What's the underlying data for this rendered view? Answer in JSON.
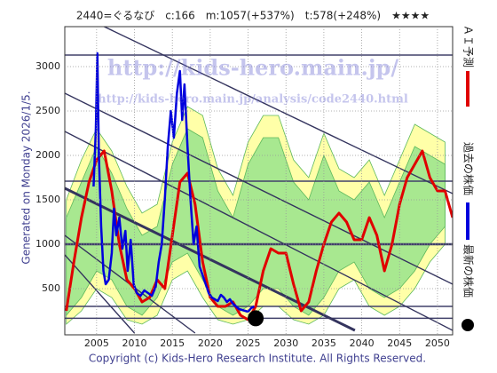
{
  "chart_data": {
    "type": "line",
    "title": "2440=ぐるなび　c:166　m:1057(+537%)　t:578(+248%)　★★★★",
    "generated": "Generated on Monday 2026/1/5.",
    "copyright": "Copyright (c) Kids-Hero Research Institute. All Rights Reserved.",
    "watermarks": [
      "http://kids-hero.main.jp/",
      "http://kids-hero.main.jp/analysis/code2440.html"
    ],
    "xlim": [
      2000.8,
      2052
    ],
    "ylim": [
      -20,
      3450
    ],
    "xticks": [
      2005,
      2010,
      2015,
      2020,
      2025,
      2030,
      2035,
      2040,
      2045,
      2050
    ],
    "yticks": [
      500,
      1000,
      1500,
      2000,
      2500,
      3000
    ],
    "grid": true,
    "legend": "right",
    "bands": [
      {
        "color": "#ffffa8",
        "x": [
          2001,
          2003,
          2005,
          2007,
          2009,
          2011,
          2013,
          2015,
          2017,
          2019,
          2021,
          2023,
          2025,
          2027,
          2029,
          2031,
          2033,
          2035,
          2037,
          2039,
          2041,
          2043,
          2045,
          2047,
          2049,
          2051
        ],
        "upper": [
          1500,
          1950,
          2300,
          2050,
          1650,
          1350,
          1450,
          2150,
          2550,
          2450,
          1850,
          1550,
          2150,
          2450,
          2450,
          1950,
          1750,
          2250,
          1850,
          1750,
          1950,
          1550,
          1950,
          2350,
          2250,
          2150
        ],
        "lower": [
          100,
          250,
          500,
          400,
          150,
          100,
          200,
          600,
          700,
          400,
          150,
          100,
          150,
          300,
          300,
          150,
          100,
          200,
          500,
          600,
          300,
          200,
          300,
          500,
          800,
          1000
        ]
      },
      {
        "color": "#a8e890",
        "x": [
          2001,
          2003,
          2005,
          2007,
          2009,
          2011,
          2013,
          2015,
          2017,
          2019,
          2021,
          2023,
          2025,
          2027,
          2029,
          2031,
          2033,
          2035,
          2037,
          2039,
          2041,
          2043,
          2045,
          2047,
          2049,
          2051
        ],
        "upper": [
          1300,
          1700,
          2100,
          1800,
          1400,
          1100,
          1200,
          1900,
          2300,
          2200,
          1600,
          1300,
          1900,
          2200,
          2200,
          1700,
          1500,
          2000,
          1600,
          1500,
          1700,
          1300,
          1700,
          2100,
          2000,
          1900
        ],
        "lower": [
          200,
          400,
          700,
          600,
          300,
          200,
          400,
          800,
          900,
          600,
          300,
          200,
          300,
          500,
          500,
          300,
          200,
          400,
          700,
          800,
          500,
          400,
          500,
          700,
          1000,
          1200
        ]
      }
    ],
    "levels": [
      3130,
      1710,
      1000,
      300,
      166
    ],
    "trend_lines": [
      {
        "x": [
          2006.0,
          2052
        ],
        "values": [
          3450,
          1570
        ]
      },
      {
        "x": [
          2000.8,
          2052
        ],
        "values": [
          2700,
          550
        ]
      },
      {
        "x": [
          2000.8,
          2052
        ],
        "values": [
          2270,
          30
        ]
      },
      {
        "x": [
          2000.8,
          2039.1
        ],
        "values": [
          1630,
          30
        ]
      },
      {
        "x": [
          2000.8,
          2018.0
        ],
        "values": [
          1100,
          0
        ]
      },
      {
        "x": [
          2000.8,
          2010.0
        ],
        "values": [
          880,
          0
        ]
      }
    ],
    "series": [
      {
        "name": "ＡＩ予測",
        "color": "#e00000",
        "x": [
          2001,
          2002,
          2003,
          2004,
          2005,
          2006,
          2007,
          2008,
          2009,
          2010,
          2011,
          2012,
          2013,
          2014,
          2015,
          2016,
          2017,
          2018,
          2019,
          2020,
          2021,
          2022,
          2023,
          2024,
          2025,
          2026,
          2027,
          2028,
          2029,
          2030,
          2031,
          2032,
          2033,
          2034,
          2035,
          2036,
          2037,
          2038,
          2039,
          2040,
          2041,
          2042,
          2043,
          2044,
          2045,
          2046,
          2047,
          2048,
          2049,
          2050,
          2051,
          2052
        ],
        "values": [
          250,
          800,
          1300,
          1700,
          1950,
          2050,
          1600,
          1000,
          600,
          500,
          350,
          400,
          600,
          500,
          1100,
          1700,
          1800,
          1450,
          800,
          400,
          300,
          300,
          350,
          200,
          150,
          300,
          700,
          950,
          900,
          900,
          550,
          250,
          350,
          700,
          1000,
          1250,
          1350,
          1250,
          1050,
          1050,
          1300,
          1100,
          700,
          1000,
          1450,
          1750,
          1900,
          2050,
          1750,
          1600,
          1600,
          1300
        ]
      },
      {
        "name": "過去の株価",
        "color": "#0000dd",
        "x": [
          2004.6,
          2004.9,
          2005.1,
          2005.3,
          2005.6,
          2005.9,
          2006.2,
          2006.6,
          2007.0,
          2007.3,
          2007.6,
          2008.0,
          2008.4,
          2008.8,
          2009.1,
          2009.5,
          2009.9,
          2010.3,
          2010.8,
          2011.3,
          2011.8,
          2012.3,
          2012.8,
          2013.2,
          2013.6,
          2014.0,
          2014.4,
          2014.8,
          2015.2,
          2015.6,
          2016.0,
          2016.3,
          2016.6,
          2017.0,
          2017.4,
          2017.8,
          2018.2,
          2018.6,
          2019.0,
          2019.4,
          2019.8,
          2020.2,
          2020.6,
          2021.0,
          2021.4,
          2021.8,
          2022.2,
          2022.6,
          2023.0,
          2023.4,
          2023.8,
          2024.2,
          2024.6,
          2025.0,
          2025.4,
          2025.8
        ],
        "values": [
          1650,
          2300,
          3150,
          2000,
          1200,
          700,
          550,
          600,
          900,
          1400,
          1100,
          1300,
          950,
          1150,
          700,
          1050,
          550,
          450,
          420,
          480,
          450,
          420,
          520,
          800,
          1000,
          1500,
          2100,
          2500,
          2200,
          2700,
          2950,
          2400,
          2800,
          2100,
          1500,
          1000,
          1200,
          750,
          650,
          550,
          450,
          400,
          380,
          360,
          430,
          400,
          350,
          380,
          330,
          300,
          270,
          260,
          250,
          240,
          280,
          300
        ]
      },
      {
        "name": "最新の株価",
        "color": "#000000",
        "x": [
          2026.0
        ],
        "values": [
          166
        ]
      }
    ]
  }
}
